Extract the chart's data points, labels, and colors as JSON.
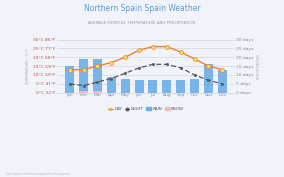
{
  "title": "Northern Spain Spain Weather",
  "subtitle": "AVERAGE MONTHLY TEMPERATURE AND PRECIPITATION",
  "months": [
    "Jan",
    "Feb",
    "Mar",
    "Apr",
    "May",
    "Jun",
    "Jul",
    "Aug",
    "Sep",
    "Oct",
    "Nov",
    "Dec"
  ],
  "day_temp": [
    13,
    13,
    15,
    17,
    20,
    24,
    26,
    26,
    23,
    19,
    15,
    13
  ],
  "night_temp": [
    5,
    4,
    6,
    8,
    11,
    14,
    16,
    16,
    14,
    10,
    7,
    5
  ],
  "rain_days": [
    15,
    19,
    19,
    9,
    8,
    7,
    7,
    7,
    7,
    8,
    16,
    13
  ],
  "snow_days": [
    0,
    1,
    1,
    0,
    0,
    0,
    0,
    0,
    0,
    0,
    0,
    0
  ],
  "bar_color": "#6aaee8",
  "snow_color": "#f4b8c1",
  "day_line_color": "#f47c3c",
  "night_line_color": "#555555",
  "background_color": "#f0f4fa",
  "plot_bg_color": "#f0f4fa",
  "grid_color": "#cccccc",
  "left_ytick_labels": [
    "0°C 32°F",
    "5°C 41°F",
    "10°C 50°F",
    "15°C 59°F",
    "20°C 68°F",
    "25°C 77°F",
    "30°C 86°F"
  ],
  "left_ytick_vals": [
    0,
    5,
    10,
    15,
    20,
    25,
    30
  ],
  "right_ytick_labels": [
    "0 days",
    "5 days",
    "10 days",
    "15 days",
    "20 days",
    "25 days",
    "30 days"
  ],
  "right_ytick_vals": [
    0,
    5,
    10,
    15,
    20,
    25,
    30
  ],
  "ylim": [
    0,
    30
  ],
  "footer": "hikersbay.com/climate/spain/northernspain",
  "title_color": "#5b9bd5",
  "subtitle_color": "#999999",
  "left_tick_color": "#cc4444",
  "right_tick_color": "#888888",
  "bottom_tick_color": "#888888",
  "ylabel_left": "TEMPERATURE, °C/°F",
  "ylabel_right": "PRECIPITATION"
}
